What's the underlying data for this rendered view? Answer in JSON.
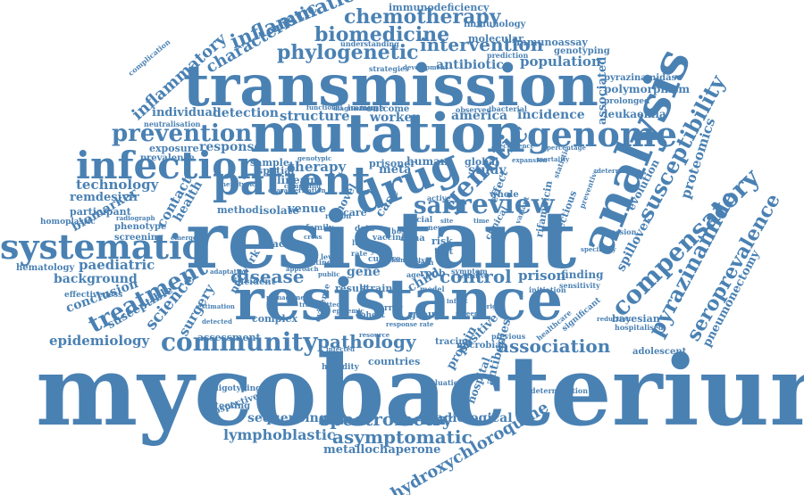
{
  "theme": {
    "word_color": "#4a81b3",
    "background": "#ffffff"
  },
  "words": [
    "mycobacterium",
    "resistant",
    "resistance",
    "transmission",
    "mutation",
    "analysis",
    "drug",
    "patient",
    "infection",
    "systematic",
    "genome",
    "community",
    "compensatory",
    "treatment",
    "review",
    "genetic",
    "prevention",
    "susceptibility",
    "pyrazinamide",
    "seroprevalence",
    "phylogenetic",
    "chemotherapy",
    "inflammation",
    "biomedicine",
    "intervention",
    "characteristic",
    "inflammatory",
    "spectrometry",
    "association",
    "disease",
    "control",
    "pathology",
    "asymptomatic",
    "lymphoblastic",
    "hydroxychloroquine",
    "epidemiology",
    "technology",
    "biomarker",
    "paediatric",
    "background",
    "science",
    "surgery",
    "proteomics",
    "pneumonectomy",
    "metallochaperone",
    "radiological",
    "sequencing",
    "population",
    "antibiotic",
    "incidence",
    "structure",
    "detection",
    "individual",
    "response",
    "therapy",
    "america",
    "associated",
    "polymorphism",
    "leukaemia",
    "bayesian",
    "adolescent",
    "remdesivir",
    "conclusion",
    "susceptible",
    "sarr",
    "prison",
    "finding",
    "child",
    "study",
    "health",
    "contact",
    "worker",
    "network",
    "venue",
    "isolate",
    "method",
    "factor",
    "gene",
    "case",
    "evolution",
    "immunodeficiency",
    "immunology",
    "molecular",
    "immunoassay",
    "genotyping",
    "pyrazinamidase",
    "prolonged",
    "hematology",
    "homoplastic",
    "participant",
    "phenotype",
    "screening",
    "exposure",
    "prevalence",
    "complex",
    "assessment",
    "spillover",
    "rifampicin",
    "infectious",
    "protein",
    "positive",
    "hospital",
    "antibodies",
    "countries",
    "heredity",
    "tracing",
    "microbial",
    "determination",
    "spoligotyping",
    "prospective",
    "detecting",
    "lineage",
    "sample",
    "human",
    "global",
    "novel",
    "care",
    "meta",
    "outcome",
    "immune",
    "bacterial",
    "observed",
    "reduction",
    "family",
    "effect",
    "whole",
    "risk",
    "spatial",
    "understanding",
    "strategies",
    "development",
    "prediction",
    "complication",
    "neutralisation",
    "diagnostic",
    "functional",
    "expansion",
    "mortality",
    "percentage",
    "preventive",
    "prisoner",
    "regression",
    "specificity",
    "sensitivity",
    "significant",
    "initiation",
    "hospitalised",
    "previous",
    "healthcare",
    "infected",
    "evaluation",
    "effectiveness",
    "rpob",
    "group",
    "strain",
    "result",
    "incident",
    "adaptation",
    "symptom",
    "clinical",
    "sensitive",
    "rrdr",
    "cohort",
    "vaccine",
    "culture",
    "dna",
    "region",
    "social",
    "active",
    "news",
    "year",
    "death",
    "mdr",
    "test",
    "data",
    "level",
    "host",
    "immunity",
    "phenotypic",
    "genotypic",
    "emergence",
    "evidence",
    "management",
    "estimation",
    "detected",
    "resource",
    "variant",
    "determining",
    "recurrence",
    "statistic",
    "response rate",
    "radiograph",
    "characterization",
    "compound",
    "cross",
    "setting",
    "approach",
    "transmitted",
    "infant",
    "model",
    "age",
    "origin",
    "epidemic",
    "lung",
    "rate",
    "site",
    "time",
    "cell",
    "public",
    "screen"
  ]
}
